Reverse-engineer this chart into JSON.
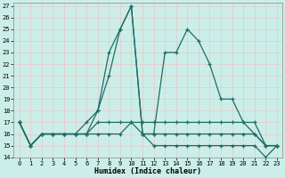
{
  "xlabel": "Humidex (Indice chaleur)",
  "bg_color": "#cceee8",
  "grid_color": "#e8c8c8",
  "line_color": "#1a6e64",
  "xlim": [
    -0.5,
    23.5
  ],
  "ylim": [
    14,
    27.3
  ],
  "xticks": [
    0,
    1,
    2,
    3,
    4,
    5,
    6,
    7,
    8,
    9,
    10,
    11,
    12,
    13,
    14,
    15,
    16,
    17,
    18,
    19,
    20,
    21,
    22,
    23
  ],
  "yticks": [
    14,
    15,
    16,
    17,
    18,
    19,
    20,
    21,
    22,
    23,
    24,
    25,
    26,
    27
  ],
  "series": [
    [
      17,
      15,
      16,
      16,
      16,
      16,
      16,
      18,
      21,
      25,
      27,
      16,
      15,
      15,
      15,
      15,
      15,
      15,
      15,
      15,
      15,
      15,
      14,
      15
    ],
    [
      17,
      15,
      16,
      16,
      16,
      16,
      17,
      18,
      23,
      25,
      27,
      16,
      16,
      23,
      23,
      25,
      24,
      22,
      19,
      19,
      17,
      16,
      15,
      15
    ],
    [
      17,
      15,
      16,
      16,
      16,
      16,
      16,
      17,
      17,
      17,
      17,
      17,
      17,
      17,
      17,
      17,
      17,
      17,
      17,
      17,
      17,
      17,
      15,
      15
    ],
    [
      17,
      15,
      16,
      16,
      16,
      16,
      16,
      16,
      16,
      16,
      17,
      16,
      16,
      16,
      16,
      16,
      16,
      16,
      16,
      16,
      16,
      16,
      15,
      15
    ]
  ]
}
